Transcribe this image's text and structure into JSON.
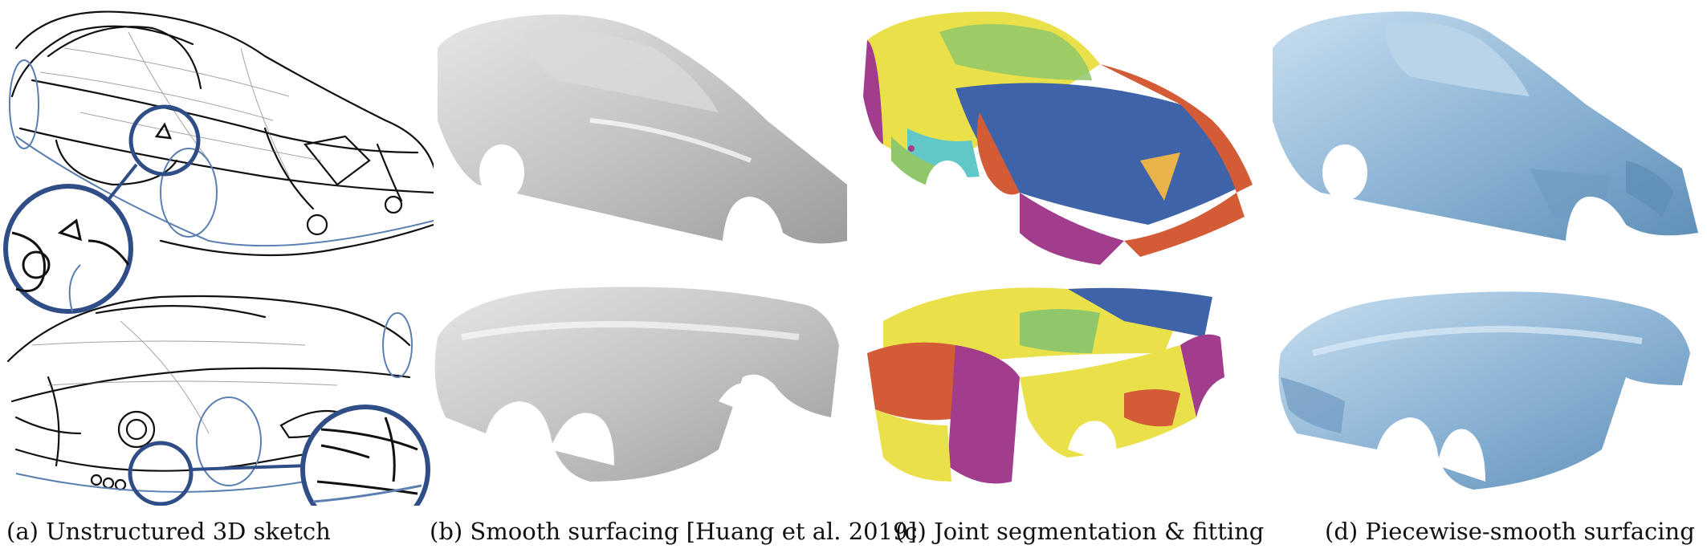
{
  "figure": {
    "captions": {
      "a": "(a) Unstructured 3D sketch",
      "b": "(b) Smooth surfacing [Huang et al. 2019]",
      "c": "(c) Joint segmentation & fitting",
      "d": "(d) Piecewise-smooth surfacing"
    },
    "colors": {
      "sketch_ink": "#111111",
      "sketch_blue": "#5a7fb0",
      "zoom_circle": "#2f4d87",
      "smooth_gray": "#bfbfbf",
      "piecewise_blue": "#8fb6d6",
      "segment_yellow": "#e9e04a",
      "segment_blue": "#3f63a8",
      "segment_purple": "#a23c8c",
      "segment_orange": "#d35b35",
      "segment_green": "#8fc76a",
      "segment_cyan": "#62c7c7"
    }
  }
}
